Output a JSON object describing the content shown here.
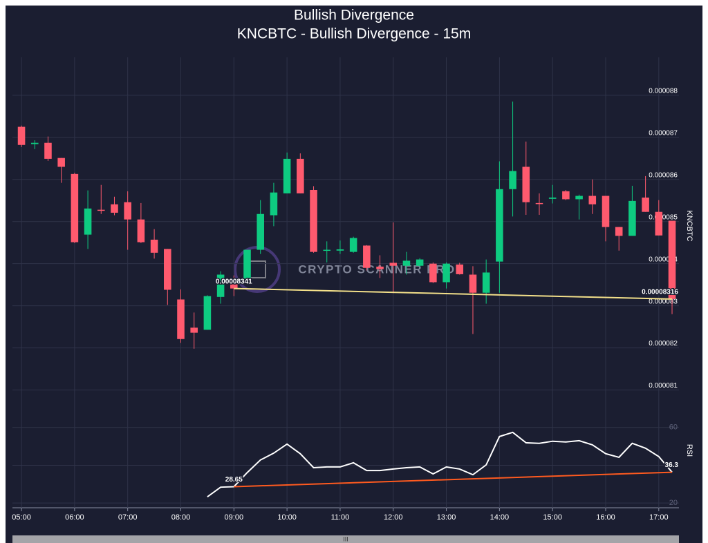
{
  "chart_data": [
    {
      "type": "candlestick",
      "title": "Bullish Divergence",
      "subtitle": "KNCBTC - Bullish Divergence - 15m",
      "ylabel": "KNCBTC",
      "watermark": "CRYPTO SCANNER PRO",
      "up_color": "#0ecb81",
      "down_color": "#ff5a6e",
      "grid": true,
      "x": [
        5,
        5.25,
        5.5,
        5.75,
        6,
        6.25,
        6.5,
        6.75,
        7,
        7.25,
        7.5,
        7.75,
        8,
        8.25,
        8.5,
        8.75,
        9,
        9.25,
        9.5,
        9.75,
        10,
        10.25,
        10.5,
        10.75,
        11,
        11.25,
        11.5,
        11.75,
        12,
        12.25,
        12.5,
        12.75,
        13,
        13.25,
        13.5,
        13.75,
        14,
        14.25,
        14.5,
        14.75,
        15,
        15.25,
        15.5,
        15.75,
        16,
        16.25,
        16.5,
        16.75,
        17,
        17.25
      ],
      "open": [
        8.725e-05,
        8.684e-05,
        8.687e-05,
        8.651e-05,
        8.613e-05,
        8.469e-05,
        8.528e-05,
        8.541e-05,
        8.546e-05,
        8.505e-05,
        8.457e-05,
        8.435e-05,
        8.315e-05,
        8.248e-05,
        8.243e-05,
        8.321e-05,
        8.351e-05,
        8.362e-05,
        8.433e-05,
        8.515e-05,
        8.567e-05,
        8.649e-05,
        8.575e-05,
        8.431e-05,
        8.431e-05,
        8.428e-05,
        8.443e-05,
        8.393e-05,
        8.402e-05,
        8.395e-05,
        8.395e-05,
        8.4e-05,
        8.356e-05,
        8.398e-05,
        8.374e-05,
        8.331e-05,
        8.405e-05,
        8.577e-05,
        8.63e-05,
        8.544e-05,
        8.554e-05,
        8.572e-05,
        8.553e-05,
        8.561e-05,
        8.561e-05,
        8.487e-05,
        8.466e-05,
        8.557e-05,
        8.523e-05,
        8.502e-05
      ],
      "high": [
        8.728e-05,
        8.693e-05,
        8.702e-05,
        8.651e-05,
        8.616e-05,
        8.574e-05,
        8.587e-05,
        8.559e-05,
        8.572e-05,
        8.544e-05,
        8.482e-05,
        8.435e-05,
        8.339e-05,
        8.284e-05,
        8.325e-05,
        8.382e-05,
        8.372e-05,
        8.433e-05,
        8.551e-05,
        8.592e-05,
        8.664e-05,
        8.662e-05,
        8.584e-05,
        8.453e-05,
        8.455e-05,
        8.464e-05,
        8.444e-05,
        8.42e-05,
        8.498e-05,
        8.428e-05,
        8.413e-05,
        8.403e-05,
        8.403e-05,
        8.402e-05,
        8.394e-05,
        8.41e-05,
        8.643e-05,
        8.785e-05,
        8.69e-05,
        8.567e-05,
        8.587e-05,
        8.575e-05,
        8.564e-05,
        8.6e-05,
        8.561e-05,
        8.487e-05,
        8.585e-05,
        8.608e-05,
        8.551e-05,
        8.502e-05
      ],
      "low": [
        8.677e-05,
        8.672e-05,
        8.644e-05,
        8.592e-05,
        8.449e-05,
        8.435e-05,
        8.518e-05,
        8.515e-05,
        8.433e-05,
        8.449e-05,
        8.412e-05,
        8.302e-05,
        8.212e-05,
        8.198e-05,
        8.243e-05,
        8.305e-05,
        8.323e-05,
        8.362e-05,
        8.423e-05,
        8.489e-05,
        8.567e-05,
        8.567e-05,
        8.426e-05,
        8.403e-05,
        8.423e-05,
        8.426e-05,
        8.384e-05,
        8.366e-05,
        8.33e-05,
        8.374e-05,
        8.392e-05,
        8.354e-05,
        8.341e-05,
        8.374e-05,
        8.233e-05,
        8.305e-05,
        8.331e-05,
        8.512e-05,
        8.516e-05,
        8.516e-05,
        8.543e-05,
        8.551e-05,
        8.505e-05,
        8.518e-05,
        8.453e-05,
        8.431e-05,
        8.466e-05,
        8.523e-05,
        8.467e-05,
        8.28e-05
      ],
      "close": [
        8.682e-05,
        8.687e-05,
        8.649e-05,
        8.63e-05,
        8.451e-05,
        8.531e-05,
        8.526e-05,
        8.521e-05,
        8.505e-05,
        8.451e-05,
        8.426e-05,
        8.338e-05,
        8.221e-05,
        8.236e-05,
        8.323e-05,
        8.374e-05,
        8.341e-05,
        8.433e-05,
        8.518e-05,
        8.569e-05,
        8.649e-05,
        8.567e-05,
        8.428e-05,
        8.433e-05,
        8.434e-05,
        8.461e-05,
        8.39e-05,
        8.387e-05,
        8.395e-05,
        8.407e-05,
        8.41e-05,
        8.356e-05,
        8.4e-05,
        8.375e-05,
        8.331e-05,
        8.379e-05,
        8.577e-05,
        8.62e-05,
        8.546e-05,
        8.543e-05,
        8.557e-05,
        8.553e-05,
        8.561e-05,
        8.541e-05,
        8.487e-05,
        8.466e-05,
        8.549e-05,
        8.523e-05,
        8.467e-05,
        8.316e-05
      ],
      "xlim": [
        4.83,
        17.38
      ],
      "xticks": [
        {
          "value": 5,
          "label": "05:00"
        },
        {
          "value": 6,
          "label": "06:00"
        },
        {
          "value": 7,
          "label": "07:00"
        },
        {
          "value": 8,
          "label": "08:00"
        },
        {
          "value": 9,
          "label": "09:00"
        },
        {
          "value": 10,
          "label": "10:00"
        },
        {
          "value": 11,
          "label": "11:00"
        },
        {
          "value": 12,
          "label": "12:00"
        },
        {
          "value": 13,
          "label": "13:00"
        },
        {
          "value": 14,
          "label": "14:00"
        },
        {
          "value": 15,
          "label": "15:00"
        },
        {
          "value": 16,
          "label": "16:00"
        },
        {
          "value": 17,
          "label": "17:00"
        }
      ],
      "ylim": [
        8.05e-05,
        8.89e-05
      ],
      "yticks": [
        8.1e-05,
        8.2e-05,
        8.3e-05,
        8.4e-05,
        8.5e-05,
        8.6e-05,
        8.7e-05,
        8.8e-05
      ],
      "divergence": {
        "x": [
          9,
          17.25
        ],
        "values": [
          8.341e-05,
          8.316e-05
        ],
        "color": "#f3e08a"
      }
    },
    {
      "type": "line",
      "ylabel": "RSI",
      "color": "#ffffff",
      "grid": true,
      "x": [
        8.5,
        8.75,
        9,
        9.25,
        9.5,
        9.75,
        10,
        10.25,
        10.5,
        10.75,
        11,
        11.25,
        11.5,
        11.75,
        12,
        12.25,
        12.5,
        12.75,
        13,
        13.25,
        13.5,
        13.75,
        14,
        14.25,
        14.5,
        14.75,
        15,
        15.25,
        15.5,
        15.75,
        16,
        16.25,
        16.5,
        16.75,
        17,
        17.25
      ],
      "values": [
        23.3,
        28.4,
        28.65,
        36.1,
        42.8,
        46.4,
        51.2,
        46.1,
        38.7,
        39.1,
        39.1,
        41.3,
        37.2,
        37.2,
        38,
        38.7,
        39.1,
        35.4,
        39.1,
        38,
        35,
        40.2,
        55.2,
        57.4,
        51.9,
        51.6,
        52.7,
        52.3,
        53,
        50.8,
        46.1,
        44.2,
        51.6,
        49,
        44.6,
        36.3
      ],
      "ylim": [
        17.5,
        70.5
      ],
      "yticks": [
        20,
        40,
        60
      ],
      "divergence": {
        "x": [
          9,
          17.25
        ],
        "values": [
          28.65,
          36.3
        ],
        "color": "#ff5a1f"
      }
    }
  ]
}
